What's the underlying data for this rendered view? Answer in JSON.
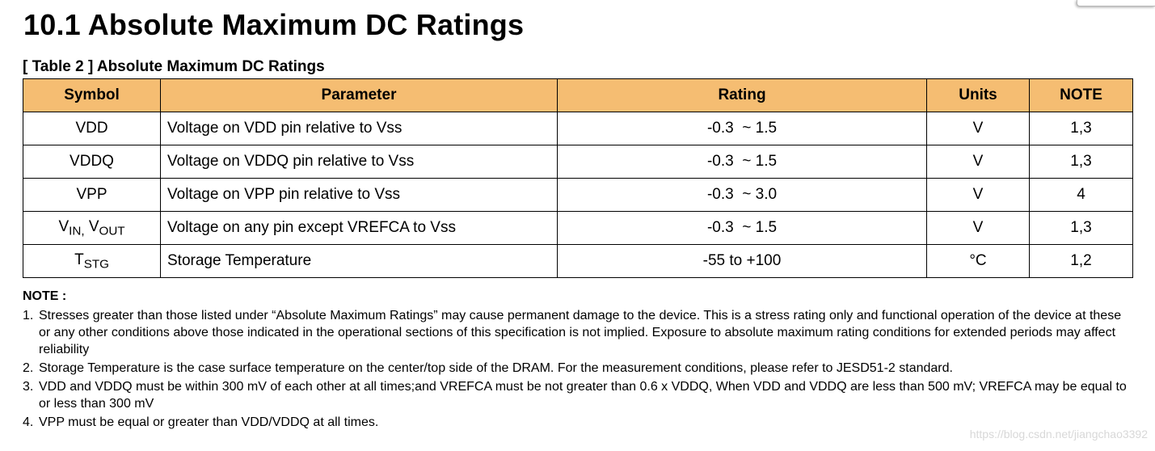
{
  "title": "10.1 Absolute Maximum DC Ratings",
  "table": {
    "caption": "[ Table 2 ] Absolute Maximum DC Ratings",
    "headers": {
      "symbol": "Symbol",
      "parameter": "Parameter",
      "rating": "Rating",
      "units": "Units",
      "note": "NOTE"
    },
    "rows": [
      {
        "symbol": "VDD",
        "parameter": "Voltage on VDD pin relative to Vss",
        "rating": "-0.3  ~ 1.5",
        "units": "V",
        "note": "1,3"
      },
      {
        "symbol": "VDDQ",
        "parameter": "Voltage on VDDQ pin relative to Vss",
        "rating": "-0.3  ~ 1.5",
        "units": "V",
        "note": "1,3"
      },
      {
        "symbol": "VPP",
        "parameter": "Voltage on VPP pin relative to Vss",
        "rating": "-0.3  ~ 3.0",
        "units": "V",
        "note": "4"
      },
      {
        "symbol_a": "V",
        "symbol_a_sub": "IN,",
        "symbol_b": " V",
        "symbol_b_sub": "OUT",
        "parameter": "Voltage on any pin except VREFCA to Vss",
        "rating": "-0.3  ~ 1.5",
        "units": "V",
        "note": "1,3"
      },
      {
        "symbol_a": "T",
        "symbol_a_sub": "STG",
        "parameter": "Storage Temperature",
        "rating": "-55 to +100",
        "units": "°C",
        "note": "1,2"
      }
    ]
  },
  "notes": {
    "heading": "NOTE :",
    "items": [
      {
        "num": "1.",
        "text": "Stresses greater than those listed under “Absolute Maximum Ratings” may cause permanent damage to the device. This is a stress rating only and functional operation of the device at these or any other conditions above those indicated in the operational sections of this specification is not implied. Exposure to absolute maximum rating conditions for extended periods may affect reliability"
      },
      {
        "num": "2.",
        "text": "Storage Temperature is the case surface temperature on the center/top side of the DRAM. For the measurement conditions, please refer to JESD51-2 standard."
      },
      {
        "num": "3.",
        "text": "VDD and VDDQ must be within 300 mV of each other at all times;and VREFCA must be not greater than 0.6 x VDDQ, When VDD and VDDQ are less than 500 mV; VREFCA may be equal to or less than 300 mV"
      },
      {
        "num": "4.",
        "text": "VPP must be equal or greater than VDD/VDDQ at all times."
      }
    ]
  },
  "watermark": "https://blog.csdn.net/jiangchao3392"
}
